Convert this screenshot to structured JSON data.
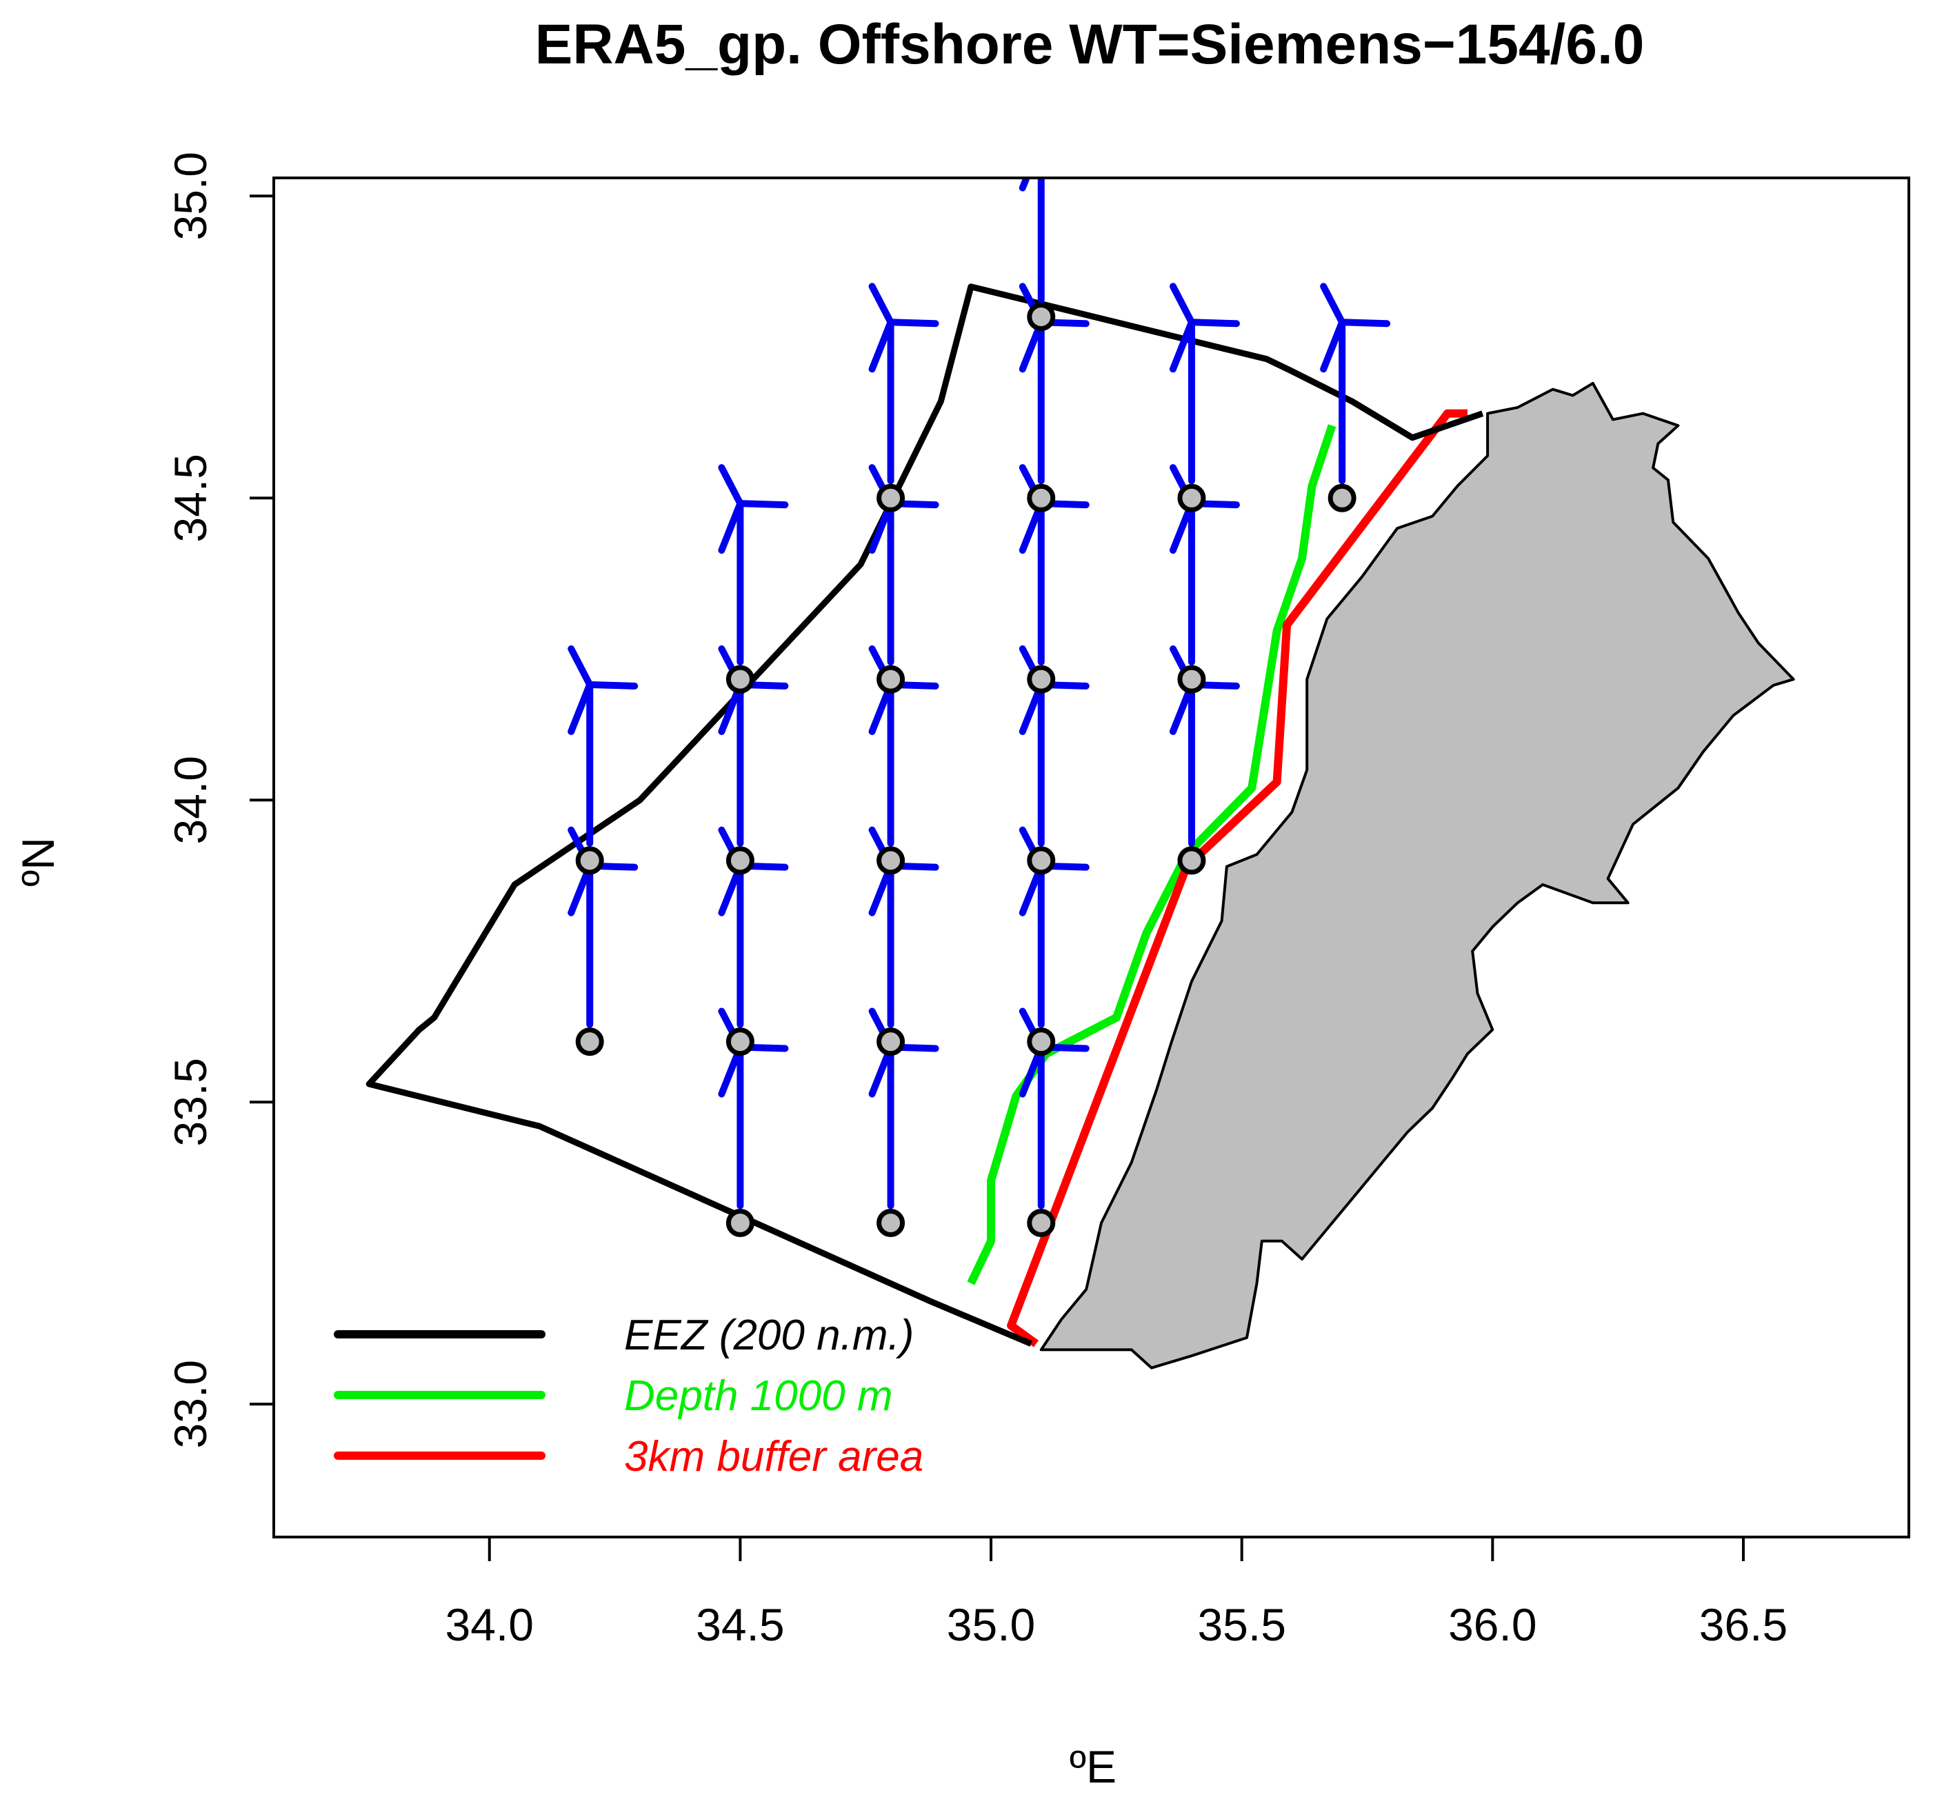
{
  "title": "ERA5_gp. Offshore WT=Siemens−154/6.0",
  "axes": {
    "xlabel": "ºE",
    "ylabel": "ºN",
    "xlim": [
      33.57,
      36.83
    ],
    "ylim": [
      32.78,
      35.03
    ],
    "xticks": [
      "34.0",
      "34.5",
      "35.0",
      "35.5",
      "36.0",
      "36.5"
    ],
    "yticks": [
      "33.0",
      "33.5",
      "34.0",
      "34.5",
      "35.0"
    ]
  },
  "colors": {
    "eez": "#000000",
    "depth": "#00ee00",
    "buffer": "#ff0000",
    "turbine": "#0000ee",
    "land": "#bebebe",
    "gridpoint": "#bebebe"
  },
  "legend": {
    "position": "bottom-left",
    "items": [
      {
        "label": "EEZ (200 n.m.)",
        "color": "#000000"
      },
      {
        "label": "Depth 1000 m",
        "color": "#00ee00"
      },
      {
        "label": "3km buffer area",
        "color": "#ff0000"
      }
    ]
  },
  "chart_data": {
    "type": "map",
    "grid_points": [
      [
        35.1,
        34.8
      ],
      [
        34.8,
        34.5
      ],
      [
        35.1,
        34.5
      ],
      [
        35.4,
        34.5
      ],
      [
        35.7,
        34.5
      ],
      [
        34.5,
        34.2
      ],
      [
        34.8,
        34.2
      ],
      [
        35.1,
        34.2
      ],
      [
        35.4,
        34.2
      ],
      [
        34.2,
        33.9
      ],
      [
        34.5,
        33.9
      ],
      [
        34.8,
        33.9
      ],
      [
        35.1,
        33.9
      ],
      [
        35.4,
        33.9
      ],
      [
        34.2,
        33.6
      ],
      [
        34.5,
        33.6
      ],
      [
        34.8,
        33.6
      ],
      [
        35.1,
        33.6
      ],
      [
        34.5,
        33.3
      ],
      [
        34.8,
        33.3
      ],
      [
        35.1,
        33.3
      ]
    ],
    "turbines": [
      [
        35.1,
        34.8
      ],
      [
        34.8,
        34.5
      ],
      [
        35.1,
        34.5
      ],
      [
        35.4,
        34.5
      ],
      [
        35.7,
        34.5
      ],
      [
        34.5,
        34.2
      ],
      [
        34.8,
        34.2
      ],
      [
        35.1,
        34.2
      ],
      [
        35.4,
        34.2
      ],
      [
        34.2,
        33.9
      ],
      [
        34.5,
        33.9
      ],
      [
        34.8,
        33.9
      ],
      [
        35.1,
        33.9
      ],
      [
        35.4,
        33.9
      ],
      [
        34.2,
        33.6
      ],
      [
        34.5,
        33.6
      ],
      [
        34.8,
        33.6
      ],
      [
        35.1,
        33.6
      ],
      [
        34.5,
        33.3
      ],
      [
        34.8,
        33.3
      ],
      [
        35.1,
        33.3
      ]
    ],
    "eez": [
      [
        35.08,
        33.1
      ],
      [
        34.88,
        33.17
      ],
      [
        34.1,
        33.46
      ],
      [
        33.76,
        33.53
      ],
      [
        33.86,
        33.62
      ],
      [
        33.89,
        33.64
      ],
      [
        34.05,
        33.86
      ],
      [
        34.3,
        34.0
      ],
      [
        34.74,
        34.39
      ],
      [
        34.9,
        34.66
      ],
      [
        34.96,
        34.85
      ],
      [
        35.55,
        34.73
      ],
      [
        35.6,
        34.71
      ],
      [
        35.72,
        34.66
      ],
      [
        35.84,
        34.6
      ],
      [
        35.98,
        34.64
      ]
    ],
    "depth_1000m": [
      [
        34.96,
        33.2
      ],
      [
        35.0,
        33.27
      ],
      [
        35.0,
        33.37
      ],
      [
        35.05,
        33.51
      ],
      [
        35.11,
        33.58
      ],
      [
        35.25,
        33.64
      ],
      [
        35.31,
        33.78
      ],
      [
        35.39,
        33.91
      ],
      [
        35.52,
        34.02
      ],
      [
        35.57,
        34.28
      ],
      [
        35.62,
        34.4
      ],
      [
        35.64,
        34.52
      ],
      [
        35.68,
        34.62
      ]
    ],
    "buffer_3km": [
      [
        35.09,
        33.1
      ],
      [
        35.04,
        33.13
      ],
      [
        35.39,
        33.89
      ],
      [
        35.57,
        34.03
      ],
      [
        35.59,
        34.29
      ],
      [
        35.91,
        34.64
      ],
      [
        35.95,
        34.64
      ]
    ],
    "land": [
      [
        35.1,
        33.09
      ],
      [
        35.18,
        33.09
      ],
      [
        35.28,
        33.09
      ],
      [
        35.32,
        33.06
      ],
      [
        35.4,
        33.08
      ],
      [
        35.51,
        33.11
      ],
      [
        35.53,
        33.2
      ],
      [
        35.54,
        33.27
      ],
      [
        35.58,
        33.27
      ],
      [
        35.62,
        33.24
      ],
      [
        35.66,
        33.28
      ],
      [
        35.73,
        33.35
      ],
      [
        35.78,
        33.4
      ],
      [
        35.83,
        33.45
      ],
      [
        35.88,
        33.49
      ],
      [
        35.92,
        33.54
      ],
      [
        35.95,
        33.58
      ],
      [
        36.0,
        33.62
      ],
      [
        35.97,
        33.68
      ],
      [
        35.96,
        33.75
      ],
      [
        36.0,
        33.79
      ],
      [
        36.05,
        33.83
      ],
      [
        36.1,
        33.86
      ],
      [
        36.2,
        33.83
      ],
      [
        36.27,
        33.83
      ],
      [
        36.23,
        33.87
      ],
      [
        36.28,
        33.96
      ],
      [
        36.37,
        34.02
      ],
      [
        36.42,
        34.08
      ],
      [
        36.48,
        34.14
      ],
      [
        36.56,
        34.19
      ],
      [
        36.6,
        34.2
      ],
      [
        36.53,
        34.26
      ],
      [
        36.49,
        34.31
      ],
      [
        36.47,
        34.34
      ],
      [
        36.43,
        34.4
      ],
      [
        36.36,
        34.46
      ],
      [
        36.35,
        34.53
      ],
      [
        36.32,
        34.55
      ],
      [
        36.33,
        34.59
      ],
      [
        36.37,
        34.62
      ],
      [
        36.3,
        34.64
      ],
      [
        36.24,
        34.63
      ],
      [
        36.2,
        34.69
      ],
      [
        36.16,
        34.67
      ],
      [
        36.12,
        34.68
      ],
      [
        36.05,
        34.65
      ],
      [
        35.99,
        34.64
      ],
      [
        35.99,
        34.57
      ],
      [
        35.93,
        34.52
      ],
      [
        35.88,
        34.47
      ],
      [
        35.81,
        34.45
      ],
      [
        35.74,
        34.37
      ],
      [
        35.67,
        34.3
      ],
      [
        35.63,
        34.2
      ],
      [
        35.63,
        34.05
      ],
      [
        35.6,
        33.98
      ],
      [
        35.53,
        33.91
      ],
      [
        35.47,
        33.89
      ],
      [
        35.46,
        33.8
      ],
      [
        35.4,
        33.7
      ],
      [
        35.36,
        33.6
      ],
      [
        35.33,
        33.52
      ],
      [
        35.28,
        33.4
      ],
      [
        35.22,
        33.3
      ],
      [
        35.19,
        33.19
      ],
      [
        35.14,
        33.14
      ]
    ]
  }
}
